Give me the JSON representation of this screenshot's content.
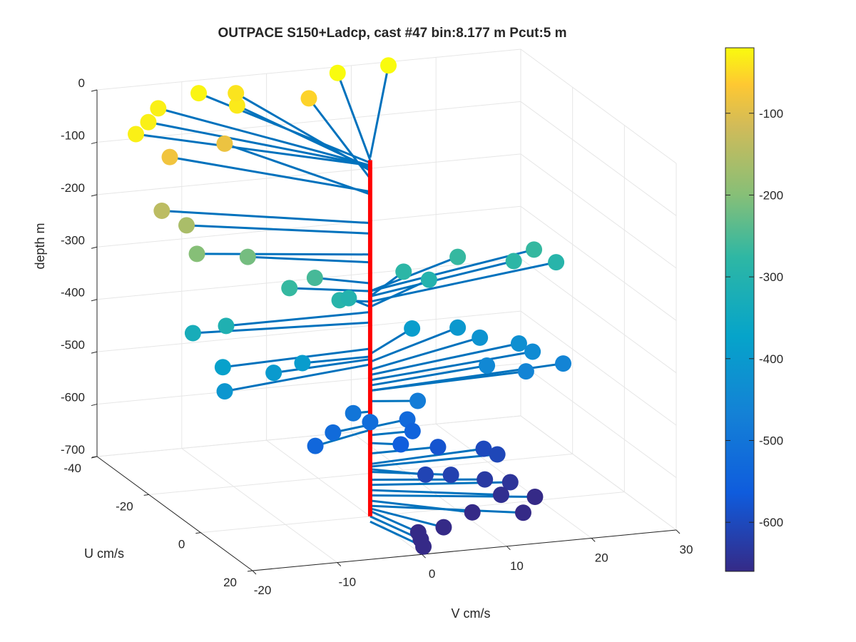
{
  "chart_data": {
    "type": "scatter3d",
    "title": "OUTPACE S150+Ladcp, cast #47 bin:8.177 m  Pcut:5 m",
    "xlabel": "V cm/s",
    "ylabel": "U cm/s",
    "zlabel": "depth m",
    "xlim": [
      -20,
      30
    ],
    "ylim": [
      -40,
      20
    ],
    "zlim": [
      -700,
      0
    ],
    "xticks": [
      "-20",
      "-10",
      "0",
      "10",
      "20",
      "30"
    ],
    "yticks": [
      "-40",
      "-20",
      "0",
      "20"
    ],
    "zticks": [
      "0",
      "-100",
      "-200",
      "-300",
      "-400",
      "-500",
      "-600",
      "-700"
    ],
    "grid": true,
    "colormap": "parula",
    "colorbar": {
      "range": [
        -660,
        -20
      ],
      "ticks": [
        "-100",
        "-200",
        "-300",
        "-400",
        "-500",
        "-600"
      ],
      "placement": "right"
    },
    "series": [
      {
        "name": "",
        "color": "#0072bd",
        "mark": "sticks from profile axis to velocity point",
        "points": [
          {
            "v": -20,
            "u": -25,
            "depth": -30
          },
          {
            "v": -17,
            "u": -30,
            "depth": -30
          },
          {
            "v": -14,
            "u": -36,
            "depth": -30
          },
          {
            "v": -8,
            "u": -40,
            "depth": -25
          },
          {
            "v": -5,
            "u": -35,
            "depth": -35
          },
          {
            "v": -3,
            "u": -42,
            "depth": -40
          },
          {
            "v": -16,
            "u": -25,
            "depth": -80
          },
          {
            "v": -8,
            "u": -30,
            "depth": -85
          },
          {
            "v": 5,
            "u": -40,
            "depth": -55
          },
          {
            "v": 9,
            "u": -42,
            "depth": -20
          },
          {
            "v": 15,
            "u": -42,
            "depth": -15
          },
          {
            "v": -20,
            "u": -15,
            "depth": -140
          },
          {
            "v": -18,
            "u": -12,
            "depth": -160
          },
          {
            "v": -18,
            "u": -8,
            "depth": -200
          },
          {
            "v": -12,
            "u": -8,
            "depth": -215
          },
          {
            "v": -8,
            "u": -5,
            "depth": -270
          },
          {
            "v": -5,
            "u": -5,
            "depth": -255
          },
          {
            "v": -3,
            "u": -2,
            "depth": -290
          },
          {
            "v": 7,
            "u": -10,
            "depth": -280
          },
          {
            "v": 10,
            "u": -10,
            "depth": -300
          },
          {
            "v": 14,
            "u": -12,
            "depth": -270
          },
          {
            "v": 20,
            "u": -10,
            "depth": -280
          },
          {
            "v": 23,
            "u": -12,
            "depth": -270
          },
          {
            "v": 25,
            "u": -10,
            "depth": -290
          },
          {
            "v": -1,
            "u": -5,
            "depth": -300
          },
          {
            "v": -17,
            "u": 0,
            "depth": -310
          },
          {
            "v": -20,
            "u": -3,
            "depth": -330
          },
          {
            "v": -18,
            "u": 2,
            "depth": -380
          },
          {
            "v": -12,
            "u": 2,
            "depth": -400
          },
          {
            "v": -8,
            "u": 0,
            "depth": -395
          },
          {
            "v": -19,
            "u": 6,
            "depth": -410
          },
          {
            "v": 8,
            "u": -10,
            "depth": -390
          },
          {
            "v": 14,
            "u": -12,
            "depth": -405
          },
          {
            "v": 16,
            "u": -10,
            "depth": -420
          },
          {
            "v": 20,
            "u": -8,
            "depth": -430
          },
          {
            "v": 21,
            "u": -6,
            "depth": -440
          },
          {
            "v": 15,
            "u": -4,
            "depth": -450
          },
          {
            "v": 19,
            "u": -2,
            "depth": -460
          },
          {
            "v": 24,
            "u": -4,
            "depth": -460
          },
          {
            "v": 5,
            "u": 2,
            "depth": -480
          },
          {
            "v": -2,
            "u": 0,
            "depth": -500
          },
          {
            "v": 0,
            "u": 0,
            "depth": -520
          },
          {
            "v": -5,
            "u": 2,
            "depth": -525
          },
          {
            "v": -8,
            "u": 5,
            "depth": -535
          },
          {
            "v": 5,
            "u": -2,
            "depth": -530
          },
          {
            "v": 5,
            "u": 0,
            "depth": -545
          },
          {
            "v": 3,
            "u": 2,
            "depth": -560
          },
          {
            "v": 8,
            "u": 0,
            "depth": -580
          },
          {
            "v": 14,
            "u": -2,
            "depth": -600
          },
          {
            "v": 15,
            "u": 0,
            "depth": -605
          },
          {
            "v": 5,
            "u": 5,
            "depth": -610
          },
          {
            "v": 8,
            "u": 5,
            "depth": -615
          },
          {
            "v": 12,
            "u": 5,
            "depth": -630
          },
          {
            "v": 15,
            "u": 5,
            "depth": -640
          },
          {
            "v": 13,
            "u": 8,
            "depth": -650
          },
          {
            "v": 17,
            "u": 8,
            "depth": -660
          },
          {
            "v": 9,
            "u": 10,
            "depth": -670
          },
          {
            "v": 15,
            "u": 10,
            "depth": -680
          },
          {
            "v": 5,
            "u": 12,
            "depth": -685
          },
          {
            "v": 2,
            "u": 12,
            "depth": -690
          },
          {
            "v": 2,
            "u": 13,
            "depth": -700
          },
          {
            "v": 2,
            "u": 14,
            "depth": -710
          }
        ]
      },
      {
        "name": "",
        "color": "#ff0000",
        "mark": "vertical profile line at origin",
        "depth_range": [
          -20,
          -700
        ]
      }
    ]
  }
}
